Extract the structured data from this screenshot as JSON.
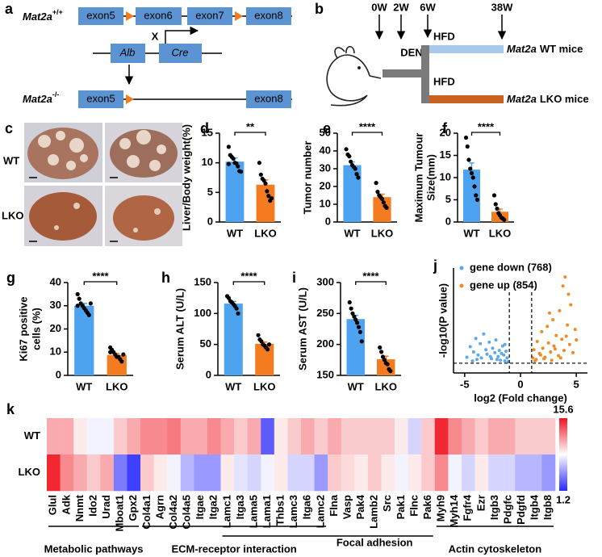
{
  "panel_a": {
    "letter": "a",
    "gene": "Mat2a",
    "wt_genotype": "+/+",
    "ko_genotype": "-/-",
    "exons_wt": [
      "exon5",
      "exon6",
      "exon7",
      "exon8"
    ],
    "exons_ko": [
      "exon5",
      "exon8"
    ],
    "block": "X",
    "promoter": "Alb",
    "recombinase": "Cre"
  },
  "panel_b": {
    "letter": "b",
    "timepoints": [
      "0W",
      "2W",
      "6W",
      "38W"
    ],
    "treatments": [
      "DEN",
      "HFD",
      "HFD"
    ],
    "gene": "Mat2a",
    "wt_group": "WT mice",
    "lko_group": "LKO mice"
  },
  "panel_c": {
    "letter": "c",
    "rows": [
      "WT",
      "LKO"
    ]
  },
  "chart_data": [
    {
      "type": "bar",
      "panel": "d",
      "ylabel": "Liver/Body weight(%)",
      "categories": [
        "WT",
        "LKO"
      ],
      "values": [
        10.2,
        6.3
      ],
      "errors": [
        0.6,
        0.8
      ],
      "points": [
        [
          12.7,
          11.3,
          11,
          10.7,
          10,
          9.9,
          9.4,
          8.6,
          8.5,
          9.8
        ],
        [
          10,
          8,
          7.3,
          7,
          6.5,
          5.2,
          4.4,
          3.6,
          4.0
        ]
      ],
      "colors": [
        "#4da3ef",
        "#f47b20"
      ],
      "ylim": [
        0,
        15
      ],
      "yticks": [
        0,
        5,
        10,
        15
      ],
      "significance": "**"
    },
    {
      "type": "bar",
      "panel": "e",
      "ylabel": "Tumor number",
      "categories": [
        "WT",
        "LKO"
      ],
      "values": [
        32,
        14
      ],
      "errors": [
        1.8,
        1.7
      ],
      "points": [
        [
          41,
          38,
          37,
          34,
          32,
          31,
          30,
          27,
          25
        ],
        [
          22,
          17,
          15,
          14,
          13,
          11,
          9,
          8
        ]
      ],
      "colors": [
        "#4da3ef",
        "#f47b20"
      ],
      "ylim": [
        0,
        50
      ],
      "yticks": [
        0,
        10,
        20,
        30,
        40,
        50
      ],
      "significance": "****"
    },
    {
      "type": "bar",
      "panel": "f",
      "ylabel": [
        "Maximum Tumour",
        "Size(mm)"
      ],
      "categories": [
        "WT",
        "LKO"
      ],
      "values": [
        11.8,
        2.3
      ],
      "errors": [
        1.5,
        0.6
      ],
      "points": [
        [
          19,
          17,
          14,
          12,
          11,
          10,
          8,
          6,
          5
        ],
        [
          6,
          4,
          3,
          2,
          1.5,
          1,
          0.8,
          0.5
        ]
      ],
      "colors": [
        "#4da3ef",
        "#f47b20"
      ],
      "ylim": [
        0,
        20
      ],
      "yticks": [
        0,
        5,
        10,
        15,
        20
      ],
      "significance": "****"
    },
    {
      "type": "bar",
      "panel": "g",
      "ylabel": [
        "Ki67 positive",
        "cells (%)"
      ],
      "categories": [
        "WT",
        "LKO"
      ],
      "values": [
        30,
        8.8
      ],
      "errors": [
        1,
        0.6
      ],
      "points": [
        [
          35,
          33,
          31,
          30,
          29,
          28,
          27,
          26,
          31,
          30
        ],
        [
          12,
          11,
          10,
          9,
          8,
          8,
          7,
          6,
          9,
          10
        ]
      ],
      "colors": [
        "#4da3ef",
        "#f47b20"
      ],
      "ylim": [
        0,
        40
      ],
      "yticks": [
        0,
        10,
        20,
        30,
        40
      ],
      "significance": "****"
    },
    {
      "type": "bar",
      "panel": "h",
      "ylabel": "Serum ALT (U/L)",
      "categories": [
        "WT",
        "LKO"
      ],
      "values": [
        116,
        51
      ],
      "errors": [
        3.5,
        2.8
      ],
      "points": [
        [
          128,
          125,
          120,
          118,
          115,
          112,
          108,
          100
        ],
        [
          65,
          58,
          55,
          50,
          48,
          45,
          42,
          50
        ]
      ],
      "colors": [
        "#4da3ef",
        "#f47b20"
      ],
      "ylim": [
        0,
        150
      ],
      "yticks": [
        0,
        50,
        100,
        150
      ],
      "significance": "****"
    },
    {
      "type": "bar",
      "panel": "i",
      "ylabel": "Serum AST (U/L)",
      "categories": [
        "WT",
        "LKO"
      ],
      "values": [
        241,
        176
      ],
      "errors": [
        6,
        5
      ],
      "points": [
        [
          268,
          258,
          250,
          245,
          240,
          235,
          228,
          220,
          205
        ],
        [
          195,
          188,
          180,
          175,
          170,
          168,
          160,
          157
        ]
      ],
      "colors": [
        "#4da3ef",
        "#f47b20"
      ],
      "ylim": [
        150,
        300
      ],
      "yticks": [
        150,
        200,
        250,
        300
      ],
      "significance": "****"
    },
    {
      "type": "scatter",
      "panel": "j",
      "xlabel": "log2 (Fold change)",
      "ylabel": "-log10(P value)",
      "xlim": [
        -6,
        6
      ],
      "ylim": [
        0,
        14
      ],
      "xticks": [
        -5,
        0,
        5
      ],
      "vlines": [
        -1,
        1
      ],
      "hline": 1.3,
      "series": [
        {
          "name": "gene down (768)",
          "color": "#5ca8e8",
          "x": [
            -4.8,
            -4.5,
            -4.2,
            -4,
            -3.8,
            -3.6,
            -3.5,
            -3.3,
            -3.1,
            -3,
            -2.8,
            -2.6,
            -2.5,
            -2.3,
            -2.2,
            -2,
            -1.9,
            -1.8,
            -1.6,
            -1.5,
            -1.4,
            -1.3,
            -1.2,
            -1.1,
            -3.9,
            -2.7,
            -1.7,
            -4.3,
            -2.1,
            -1.4
          ],
          "values": [
            2.1,
            3.5,
            2.8,
            4.6,
            2.4,
            3.9,
            2.0,
            5.2,
            3.1,
            2.5,
            4.1,
            1.9,
            3.3,
            2.7,
            4.4,
            2.2,
            3.0,
            1.7,
            3.6,
            2.4,
            1.6,
            2.9,
            2.0,
            1.5,
            1.8,
            2.2,
            2.6,
            1.6,
            1.8,
            3.8
          ]
        },
        {
          "name": "gene up (854)",
          "color": "#f08a24",
          "x": [
            1.1,
            1.2,
            1.4,
            1.5,
            1.7,
            1.9,
            2.0,
            2.2,
            2.4,
            2.5,
            2.7,
            2.9,
            3.0,
            3.2,
            3.4,
            3.5,
            3.7,
            3.9,
            4.0,
            4.2,
            4.4,
            4.5,
            4.7,
            4.9,
            5.0,
            1.3,
            2.1,
            2.8,
            3.6,
            4.3,
            1.8,
            3.1,
            3.8,
            2.6,
            4.1
          ],
          "values": [
            2.0,
            3.1,
            1.8,
            4.2,
            2.6,
            5.5,
            3.3,
            2.1,
            6.2,
            4.0,
            2.8,
            7.1,
            3.6,
            5.0,
            2.3,
            8.3,
            4.5,
            3.0,
            12.8,
            6.4,
            3.8,
            9.1,
            2.7,
            5.8,
            4.4,
            1.6,
            1.9,
            1.7,
            2.0,
            10.5,
            2.4,
            3.2,
            11.6,
            8.0,
            4.9
          ]
        }
      ]
    },
    {
      "type": "heatmap",
      "panel": "k",
      "rows": [
        "WT",
        "LKO"
      ],
      "columns": [
        "Glul",
        "Adk",
        "Nnmt",
        "Ido2",
        "Urad",
        "Mboat1",
        "Gpx2",
        "Col4a1",
        "Agrn",
        "Col4a2",
        "Col4a5",
        "Itgae",
        "Itga2",
        "Lamc1",
        "Itga3",
        "Lama5",
        "Lama1",
        "Thbs1",
        "Lamc3",
        "Itga6",
        "Lamc2",
        "Flna",
        "Vasp",
        "Pak4",
        "Lamb2",
        "Src",
        "Pak1",
        "Flnc",
        "Pak6",
        "Myh9",
        "Myh14",
        "Fgfr4",
        "Ezr",
        "Itgb3",
        "Pdgfc",
        "Pdgfd",
        "Itgb4",
        "Itgb8"
      ],
      "values": [
        [
          11,
          11,
          9,
          8,
          8,
          10,
          11,
          12,
          12,
          12.5,
          11,
          11,
          12,
          11,
          10,
          11,
          3,
          9,
          10,
          11,
          10,
          11,
          10,
          10,
          10,
          10,
          9,
          7,
          10,
          15,
          12,
          11,
          10,
          11,
          11,
          10,
          10,
          10
        ],
        [
          15,
          12,
          11,
          10,
          11,
          4,
          2,
          10,
          9,
          8,
          6,
          5,
          5,
          9,
          7.5,
          7,
          8,
          9,
          7,
          7,
          5,
          10,
          9.5,
          9,
          10,
          9,
          8,
          9,
          10,
          12,
          8,
          7,
          9,
          7,
          7,
          6,
          6,
          5
        ]
      ],
      "clim": [
        1.2,
        15.6
      ],
      "cticks": [
        15.6,
        1.2
      ],
      "groups": [
        "Metabolic pathways",
        "ECM-receptor interaction",
        "Focal adhesion",
        "Actin cytoskeleton"
      ]
    }
  ]
}
